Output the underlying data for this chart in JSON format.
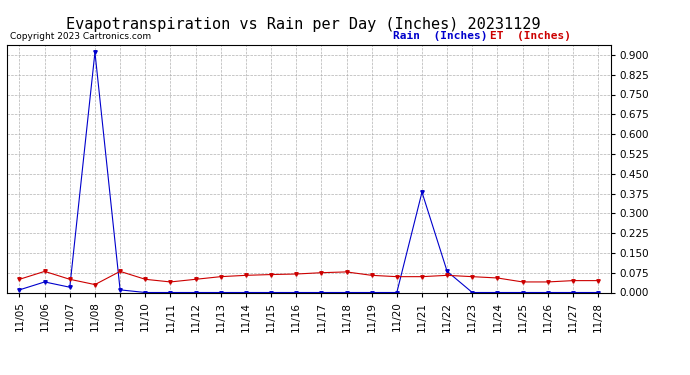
{
  "title": "Evapotranspiration vs Rain per Day (Inches) 20231129",
  "copyright": "Copyright 2023 Cartronics.com",
  "legend_rain": "Rain  (Inches)",
  "legend_et": "ET  (Inches)",
  "x_labels": [
    "11/05",
    "11/06",
    "11/07",
    "11/08",
    "11/09",
    "11/10",
    "11/11",
    "11/12",
    "11/13",
    "11/14",
    "11/15",
    "11/16",
    "11/17",
    "11/18",
    "11/19",
    "11/20",
    "11/21",
    "11/22",
    "11/23",
    "11/24",
    "11/25",
    "11/26",
    "11/27",
    "11/28"
  ],
  "rain": [
    0.01,
    0.04,
    0.02,
    0.91,
    0.01,
    0.0,
    0.0,
    0.0,
    0.0,
    0.0,
    0.0,
    0.0,
    0.0,
    0.0,
    0.0,
    0.0,
    0.38,
    0.08,
    0.0,
    0.0,
    0.0,
    0.0,
    0.0,
    0.0
  ],
  "et": [
    0.05,
    0.08,
    0.05,
    0.03,
    0.08,
    0.05,
    0.04,
    0.05,
    0.06,
    0.065,
    0.068,
    0.07,
    0.075,
    0.078,
    0.065,
    0.06,
    0.06,
    0.065,
    0.06,
    0.055,
    0.04,
    0.04,
    0.045,
    0.045
  ],
  "rain_color": "#0000cc",
  "et_color": "#cc0000",
  "background_color": "#ffffff",
  "grid_color": "#aaaaaa",
  "ylim": [
    0.0,
    0.9375
  ],
  "yticks": [
    0.0,
    0.075,
    0.15,
    0.225,
    0.3,
    0.375,
    0.45,
    0.525,
    0.6,
    0.675,
    0.75,
    0.825,
    0.9
  ],
  "title_fontsize": 11,
  "label_fontsize": 8,
  "tick_fontsize": 7.5,
  "copyright_fontsize": 6.5
}
